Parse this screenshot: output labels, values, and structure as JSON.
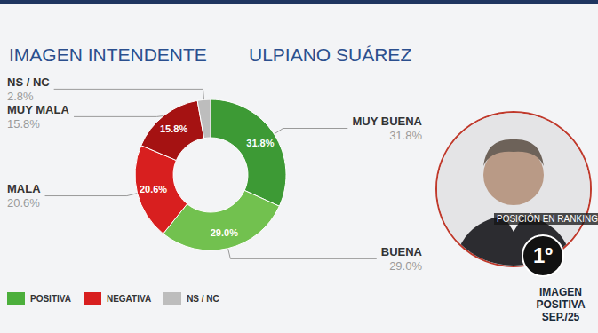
{
  "chart_data": {
    "type": "pie",
    "title": "IMAGEN INTENDENTE",
    "subtitle": "ULPIANO SUÁREZ",
    "categories": [
      "MUY BUENA",
      "BUENA",
      "MALA",
      "MUY MALA",
      "NS / NC"
    ],
    "values": [
      31.8,
      29.0,
      20.6,
      15.8,
      2.8
    ],
    "value_labels": [
      "31.8%",
      "29.0%",
      "20.6%",
      "15.8%",
      "2.8%"
    ],
    "colors": [
      "#3d9a35",
      "#72c14f",
      "#d81f1f",
      "#a51212",
      "#bdbdbd"
    ],
    "data_labels": true
  },
  "key": [
    {
      "label": "POSITIVA",
      "color": "#4caf3c"
    },
    {
      "label": "NEGATIVA",
      "color": "#d81f1f"
    },
    {
      "label": "NS / NC",
      "color": "#bdbdbd"
    }
  ],
  "profile": {
    "position_label": "POSICIÓN EN RANKING",
    "rank": "1º",
    "caption": "IMAGEN POSITIVA SEP./25"
  }
}
